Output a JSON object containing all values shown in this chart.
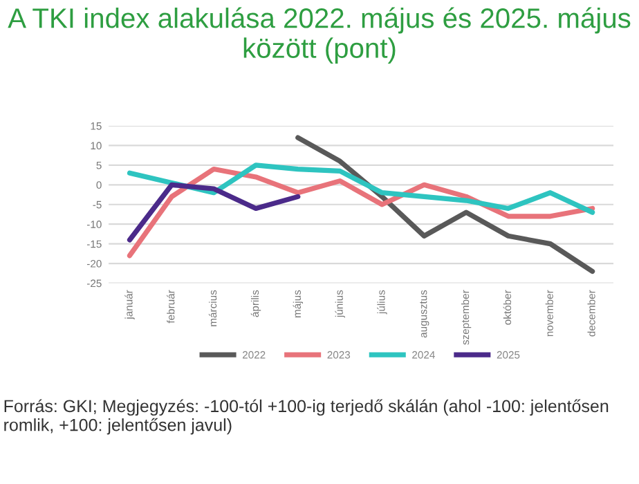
{
  "chart_data": {
    "type": "line",
    "title": "A TKI index alakulása 2022. május és 2025. május között (pont)",
    "categories": [
      "január",
      "február",
      "március",
      "április",
      "május",
      "június",
      "július",
      "augusztus",
      "szeptember",
      "október",
      "november",
      "december"
    ],
    "series": [
      {
        "name": "2022",
        "color": "#595959",
        "values": [
          null,
          null,
          null,
          null,
          12,
          6,
          -3,
          -13,
          -7,
          -13,
          -15,
          -22
        ]
      },
      {
        "name": "2023",
        "color": "#e8737a",
        "values": [
          -18,
          -3,
          4,
          2,
          -2,
          1,
          -5,
          0,
          -3,
          -8,
          -8,
          -6
        ]
      },
      {
        "name": "2024",
        "color": "#2ec4c0",
        "values": [
          3,
          0.5,
          -2,
          5,
          4,
          3.5,
          -2,
          -3,
          -4,
          -6,
          -2,
          -7
        ]
      },
      {
        "name": "2025",
        "color": "#4b2a8a",
        "values": [
          -14,
          0,
          -1,
          -6,
          -3,
          null,
          null,
          null,
          null,
          null,
          null,
          null
        ]
      }
    ],
    "ylim": [
      -25,
      15
    ],
    "yticks": [
      -25,
      -20,
      -15,
      -10,
      -5,
      0,
      5,
      10,
      15
    ],
    "grid": "y",
    "legend": "bottom",
    "marker": "none",
    "line_style": "solid",
    "annotations": [
      "Forrás: GKI; Megjegyzés: -100-tól +100-ig terjedő skálán (ahol -100: jelentősen romlik, +100: jelentősen javul)"
    ]
  }
}
